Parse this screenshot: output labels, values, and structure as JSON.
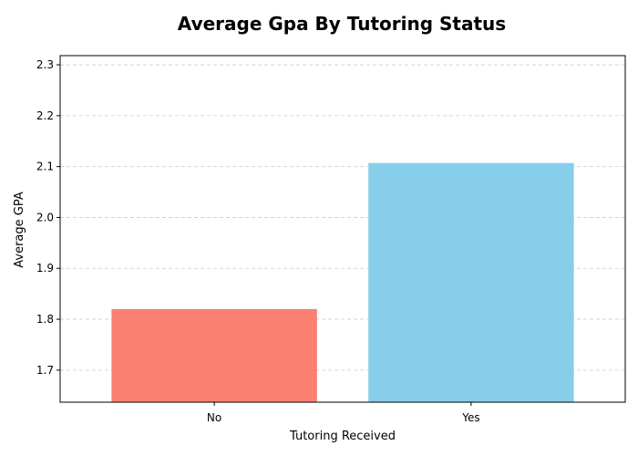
{
  "chart_data": {
    "type": "bar",
    "title": "Average Gpa By Tutoring Status",
    "xlabel": "Tutoring Received",
    "ylabel": "Average GPA",
    "categories": [
      "No",
      "Yes"
    ],
    "values": [
      1.82,
      2.107
    ],
    "colors": [
      "#fa8072",
      "#87ceeb"
    ],
    "ylim": [
      1.637,
      2.318
    ],
    "yticks": [
      "1.7",
      "1.8",
      "1.9",
      "2.0",
      "2.1",
      "2.2",
      "2.3"
    ],
    "grid": "y-dashed",
    "legend": "none"
  }
}
